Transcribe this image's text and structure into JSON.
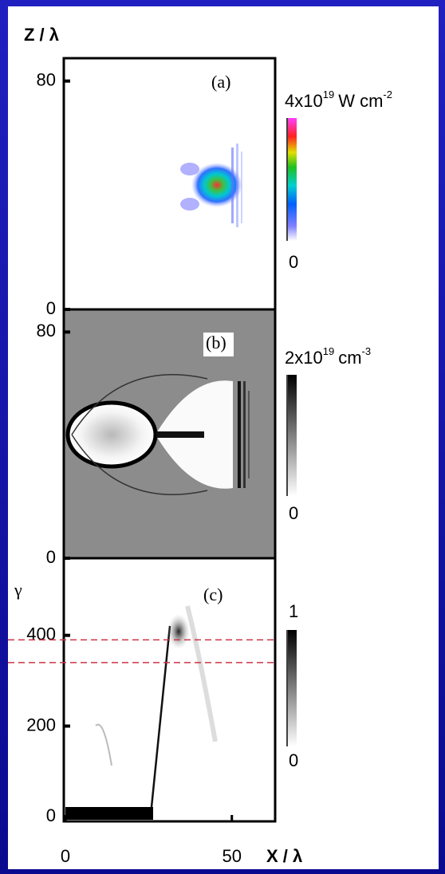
{
  "chart_data": [
    {
      "type": "heatmap",
      "panel": "(a)",
      "ylabel": "Z / λ",
      "xlim": [
        0,
        63
      ],
      "ylim": [
        0,
        88
      ],
      "yticks": [
        0,
        80
      ],
      "colormap": "rainbow",
      "colorbar": {
        "min": 0,
        "max_label": {
          "base": "4x10",
          "exp": "19",
          "unit": "W cm",
          "unit_exp": "-2"
        }
      }
    },
    {
      "type": "heatmap",
      "panel": "(b)",
      "xlim": [
        0,
        63
      ],
      "ylim": [
        0,
        88
      ],
      "yticks": [
        0,
        80
      ],
      "colormap": "gray",
      "colorbar": {
        "min": 0,
        "max_label": {
          "base": "2x10",
          "exp": "19",
          "unit": "cm",
          "unit_exp": "-3"
        }
      }
    },
    {
      "type": "heatmap",
      "panel": "(c)",
      "ylabel": "γ",
      "xlabel": "X / λ",
      "xlim": [
        0,
        63
      ],
      "ylim": [
        -10,
        570
      ],
      "yticks": [
        0,
        200,
        400
      ],
      "xticks": [
        0,
        50
      ],
      "colormap": "gray",
      "hlines": [
        390,
        340
      ],
      "hline_color": "#cc3344",
      "colorbar": {
        "min": 0,
        "max": 1
      }
    }
  ]
}
